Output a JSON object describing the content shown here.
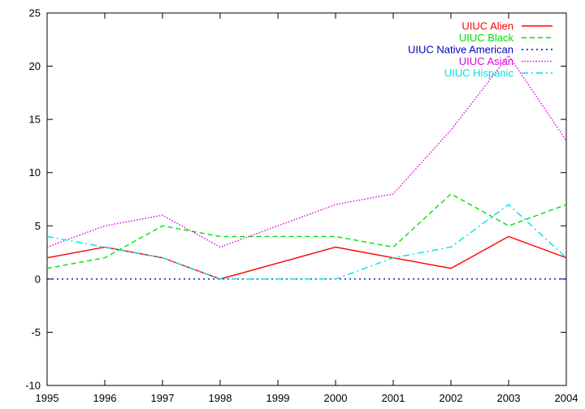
{
  "chart_data": {
    "type": "line",
    "title": "",
    "xlabel": "",
    "ylabel": "",
    "xlim": [
      1995,
      2004
    ],
    "ylim": [
      -10,
      25
    ],
    "x": [
      1995,
      1996,
      1997,
      1998,
      1999,
      2000,
      2001,
      2002,
      2003,
      2004
    ],
    "x_ticks": [
      "1995",
      "1996",
      "1997",
      "1998",
      "1999",
      "2000",
      "2001",
      "2002",
      "2003",
      "2004"
    ],
    "y_ticks": [
      "-10",
      "-5",
      "0",
      "5",
      "10",
      "15",
      "20",
      "25"
    ],
    "grid": false,
    "legend_position": "top-right",
    "series": [
      {
        "name": "UIUC Alien",
        "color": "#ff0000",
        "dash": "solid",
        "values": [
          2,
          3,
          2,
          0,
          1.5,
          3,
          2,
          1,
          4,
          2
        ]
      },
      {
        "name": "UIUC Black",
        "color": "#00e000",
        "dash": "dashed",
        "values": [
          1,
          2,
          5,
          4,
          4,
          4,
          3,
          8,
          5,
          7
        ]
      },
      {
        "name": "UIUC Native American",
        "color": "#0000c0",
        "dash": "dotted",
        "values": [
          0,
          0,
          0,
          0,
          0,
          0,
          0,
          0,
          0,
          0
        ]
      },
      {
        "name": "UIUC Asian",
        "color": "#e000e0",
        "dash": "dotted-fine",
        "values": [
          3,
          5,
          6,
          3,
          5,
          7,
          8,
          14,
          21,
          13
        ]
      },
      {
        "name": "UIUC Hispanic",
        "color": "#00e0e0",
        "dash": "dashdot",
        "values": [
          4,
          3,
          2,
          0,
          0,
          0,
          2,
          3,
          7,
          2
        ]
      }
    ]
  }
}
